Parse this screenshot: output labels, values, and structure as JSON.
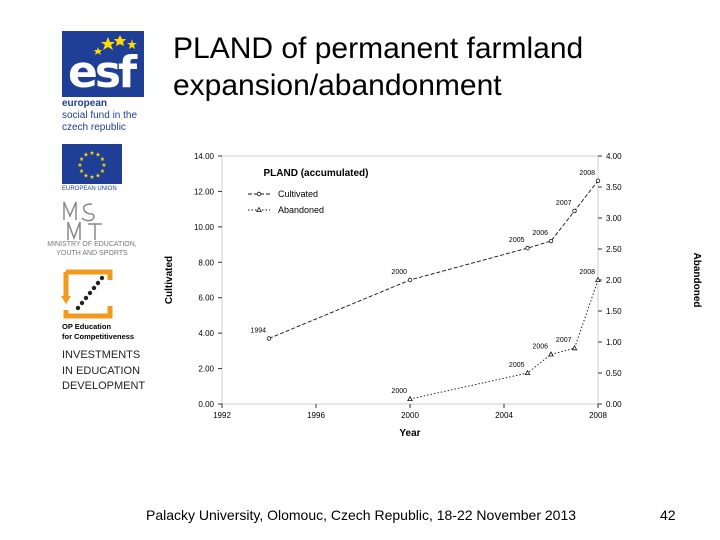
{
  "slide": {
    "title_line1": "PLAND of permanent farmland",
    "title_line2": "expansion/abandonment",
    "footer": "Palacky University, Olomouc, Czech Republic, 18-22 November 2013",
    "page_number": "42"
  },
  "logos": {
    "esf_word": "esf",
    "esf_line1": "european",
    "esf_line2": "social fund in the",
    "esf_line3": "czech republic",
    "eu_caption": "EUROPEAN UNION",
    "msmt_line1": "MINISTRY OF EDUCATION,",
    "msmt_line2": "YOUTH AND SPORTS",
    "op_line1": "OP Education",
    "op_line2": "for Competitiveness",
    "invest_line1": "INVESTMENTS",
    "invest_line2": "IN EDUCATION",
    "invest_line3": "DEVELOPMENT"
  },
  "colors": {
    "eu_blue": "#1f3f96",
    "eu_star": "#ffdd00",
    "op_orange": "#f29a1d",
    "series_line": "#111111",
    "grid_border": "#cccccc"
  },
  "chart_data": {
    "type": "line",
    "title": "PLAND (accumulated)",
    "xlabel": "Year",
    "ylabel_left": "Cultivated",
    "ylabel_right": "Abandoned",
    "xlim": [
      1992,
      2008
    ],
    "ylim_left": [
      0,
      14
    ],
    "ylim_right": [
      0,
      4
    ],
    "x_ticks": [
      "1992",
      "1996",
      "2000",
      "2004",
      "2008"
    ],
    "y_ticks_left": [
      "0.00",
      "2.00",
      "4.00",
      "6.00",
      "8.00",
      "10.00",
      "12.00",
      "14.00"
    ],
    "y_ticks_right": [
      "0.00",
      "0.50",
      "1.00",
      "1.50",
      "2.00",
      "2.50",
      "3.00",
      "3.50",
      "4.00"
    ],
    "legend_position": "top-left",
    "grid": false,
    "series": [
      {
        "name": "Cultivated",
        "axis": "left",
        "marker": "circle",
        "x": [
          1994,
          2000,
          2005,
          2006,
          2007,
          2008
        ],
        "y": [
          3.7,
          7.0,
          8.8,
          9.2,
          10.9,
          12.6
        ],
        "labels": [
          "1994",
          "2000",
          "2005",
          "2006",
          "2007",
          "2008"
        ]
      },
      {
        "name": "Abandoned",
        "axis": "right",
        "marker": "triangle",
        "x": [
          2000,
          2005,
          2006,
          2007,
          2008
        ],
        "y": [
          0.08,
          0.5,
          0.8,
          0.9,
          2.0
        ],
        "labels": [
          "2000",
          "2005",
          "2006",
          "2007",
          "2008"
        ]
      }
    ]
  }
}
